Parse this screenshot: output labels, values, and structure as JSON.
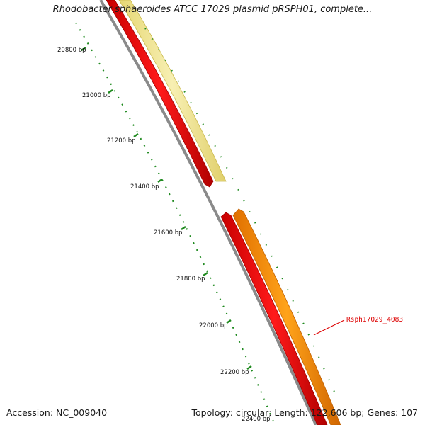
{
  "title": "Rhodobacter sphaeroides ATCC 17029 plasmid pRSPH01, complete...",
  "footer": {
    "accession": "Accession: NC_009040",
    "summary": "Topology: circular; Length: 122,606 bp; Genes: 107"
  },
  "ruler_labels": [
    "20800 bp",
    "21000 bp",
    "21200 bp",
    "21400 bp",
    "21600 bp",
    "21800 bp",
    "22000 bp",
    "22200 bp",
    "22400 bp"
  ],
  "gene_label": "Rsph17029_4083",
  "colors": {
    "backbone": "#8a8a8a",
    "ruler": "#1f8a1f",
    "gene_red": "#ee0000",
    "gene_yellow": "#f2e79a",
    "gene_orange": "#ff8c00",
    "label_red": "#dd0000"
  }
}
